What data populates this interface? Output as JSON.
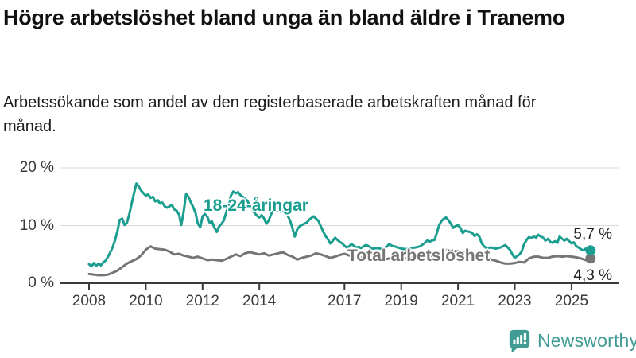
{
  "header": {
    "title": "Högre arbetslöshet bland unga än bland äldre i Tranemo",
    "subtitle": "Arbetssökande som andel av den registerbaserade arbetskraften månad för månad."
  },
  "chart_data": {
    "type": "line",
    "title": "Högre arbetslöshet bland unga än bland äldre i Tranemo",
    "subtitle": "Arbetssökande som andel av den registerbaserade arbetskraften månad för månad.",
    "grid": "horizontal",
    "legend": "inline-labels",
    "x_axis": {
      "range": [
        2008,
        2026.6
      ],
      "ticks": [
        {
          "value": 2008,
          "label": "2008"
        },
        {
          "value": 2010,
          "label": "2010"
        },
        {
          "value": 2012,
          "label": "2012"
        },
        {
          "value": 2014,
          "label": "2014"
        },
        {
          "value": 2017,
          "label": "2017"
        },
        {
          "value": 2019,
          "label": "2019"
        },
        {
          "value": 2021,
          "label": "2021"
        },
        {
          "value": 2023,
          "label": "2023"
        },
        {
          "value": 2025,
          "label": "2025"
        }
      ]
    },
    "y_axis": {
      "unit": "%",
      "range": [
        0,
        20
      ],
      "ticks": [
        {
          "value": 0,
          "label": "0 %"
        },
        {
          "value": 10,
          "label": "10 %"
        },
        {
          "value": 20,
          "label": "20 %"
        }
      ]
    },
    "series": [
      {
        "name": "18-24-åringar",
        "color": "#1b9e90",
        "end_label": "5,7 %",
        "end_value": 5.7,
        "x": [
          2008.0,
          2008.08,
          2008.17,
          2008.25,
          2008.33,
          2008.42,
          2008.5,
          2008.58,
          2008.67,
          2008.75,
          2008.83,
          2008.92,
          2009.0,
          2009.08,
          2009.17,
          2009.25,
          2009.33,
          2009.42,
          2009.5,
          2009.58,
          2009.67,
          2009.75,
          2009.83,
          2009.92,
          2010.0,
          2010.08,
          2010.17,
          2010.25,
          2010.33,
          2010.42,
          2010.5,
          2010.58,
          2010.67,
          2010.75,
          2010.83,
          2010.92,
          2011.0,
          2011.08,
          2011.17,
          2011.25,
          2011.33,
          2011.42,
          2011.5,
          2011.58,
          2011.67,
          2011.75,
          2011.83,
          2011.92,
          2012.0,
          2012.08,
          2012.17,
          2012.25,
          2012.33,
          2012.42,
          2012.5,
          2012.58,
          2012.67,
          2012.75,
          2012.83,
          2012.92,
          2013.0,
          2013.08,
          2013.17,
          2013.25,
          2013.33,
          2013.42,
          2013.5,
          2013.58,
          2013.67,
          2013.75,
          2013.83,
          2013.92,
          2014.0,
          2014.08,
          2014.17,
          2014.25,
          2014.33,
          2014.42,
          2014.5,
          2014.58,
          2014.67,
          2014.75,
          2014.83,
          2014.92,
          2015.0,
          2015.08,
          2015.17,
          2015.25,
          2015.33,
          2015.42,
          2015.5,
          2015.58,
          2015.67,
          2015.75,
          2015.83,
          2015.92,
          2016.0,
          2016.08,
          2016.17,
          2016.25,
          2016.33,
          2016.42,
          2016.5,
          2016.58,
          2016.67,
          2016.75,
          2016.83,
          2016.92,
          2017.0,
          2017.08,
          2017.17,
          2017.25,
          2017.33,
          2017.42,
          2017.5,
          2017.58,
          2017.67,
          2017.75,
          2017.83,
          2017.92,
          2018.0,
          2018.17,
          2018.33,
          2018.5,
          2018.58,
          2018.67,
          2018.83,
          2019.0,
          2019.17,
          2019.33,
          2019.5,
          2019.67,
          2019.83,
          2019.92,
          2020.0,
          2020.08,
          2020.17,
          2020.25,
          2020.33,
          2020.42,
          2020.5,
          2020.58,
          2020.67,
          2020.75,
          2020.83,
          2020.92,
          2021.0,
          2021.08,
          2021.17,
          2021.25,
          2021.33,
          2021.42,
          2021.5,
          2021.58,
          2021.67,
          2021.75,
          2021.83,
          2021.92,
          2022.0,
          2022.17,
          2022.33,
          2022.5,
          2022.58,
          2022.67,
          2022.75,
          2022.83,
          2022.92,
          2023.0,
          2023.08,
          2023.17,
          2023.25,
          2023.33,
          2023.42,
          2023.5,
          2023.58,
          2023.67,
          2023.75,
          2023.83,
          2023.92,
          2024.0,
          2024.08,
          2024.17,
          2024.25,
          2024.33,
          2024.42,
          2024.5,
          2024.58,
          2024.67,
          2024.75,
          2024.83,
          2024.92,
          2025.0,
          2025.08,
          2025.17,
          2025.25,
          2025.33,
          2025.42,
          2025.5,
          2025.58,
          2025.67
        ],
        "y": [
          3.3,
          2.9,
          3.5,
          3.0,
          3.4,
          3.1,
          3.6,
          3.9,
          4.6,
          5.4,
          6.2,
          7.5,
          9.0,
          11.0,
          11.2,
          10.1,
          10.4,
          12.0,
          13.8,
          15.5,
          17.3,
          16.8,
          16.1,
          15.6,
          15.2,
          15.4,
          14.8,
          15.0,
          14.2,
          14.4,
          13.8,
          14.0,
          13.3,
          13.1,
          13.3,
          13.6,
          12.8,
          12.6,
          11.9,
          10.1,
          12.3,
          15.5,
          15.0,
          14.1,
          13.2,
          12.2,
          10.4,
          9.7,
          11.6,
          12.0,
          11.5,
          10.5,
          10.7,
          9.6,
          8.9,
          9.8,
          10.3,
          10.9,
          12.2,
          13.6,
          15.2,
          15.9,
          15.6,
          15.8,
          15.3,
          15.0,
          14.6,
          14.3,
          13.4,
          12.8,
          12.2,
          11.7,
          11.4,
          11.8,
          11.2,
          10.3,
          10.9,
          12.0,
          12.7,
          12.5,
          12.8,
          12.4,
          12.6,
          12.1,
          11.7,
          10.9,
          9.5,
          8.1,
          9.3,
          9.9,
          10.1,
          10.3,
          10.5,
          11.0,
          11.3,
          11.6,
          11.2,
          10.8,
          9.8,
          9.0,
          8.2,
          7.6,
          6.9,
          7.3,
          7.9,
          7.5,
          7.2,
          6.9,
          6.5,
          6.2,
          6.4,
          6.8,
          6.5,
          6.2,
          6.3,
          6.1,
          6.4,
          6.6,
          6.5,
          6.2,
          6.0,
          6.1,
          5.9,
          6.4,
          6.8,
          6.5,
          6.3,
          6.0,
          5.9,
          6.1,
          6.2,
          6.4,
          7.0,
          7.4,
          7.2,
          7.4,
          7.5,
          8.6,
          10.0,
          10.8,
          11.2,
          11.4,
          10.9,
          10.3,
          9.6,
          9.9,
          10.1,
          9.6,
          8.7,
          9.1,
          9.0,
          8.9,
          8.7,
          8.2,
          8.5,
          8.1,
          7.0,
          6.4,
          6.1,
          6.2,
          6.0,
          6.2,
          6.4,
          6.6,
          6.2,
          5.8,
          5.0,
          4.4,
          4.7,
          5.0,
          5.6,
          6.8,
          7.5,
          8.0,
          7.8,
          8.1,
          7.9,
          8.4,
          8.1,
          7.9,
          7.4,
          7.7,
          7.2,
          7.0,
          7.3,
          7.0,
          8.1,
          7.7,
          7.4,
          7.7,
          7.3,
          6.9,
          7.1,
          6.4,
          6.2,
          5.9,
          5.7,
          6.0,
          5.8,
          5.7
        ]
      },
      {
        "name": "Total arbetslöshet",
        "color": "#757575",
        "end_label": "4,3 %",
        "end_value": 4.3,
        "x": [
          2008.0,
          2008.17,
          2008.33,
          2008.5,
          2008.67,
          2008.83,
          2009.0,
          2009.17,
          2009.33,
          2009.5,
          2009.67,
          2009.83,
          2010.0,
          2010.08,
          2010.17,
          2010.25,
          2010.33,
          2010.5,
          2010.67,
          2010.83,
          2011.0,
          2011.17,
          2011.33,
          2011.5,
          2011.67,
          2011.83,
          2012.0,
          2012.17,
          2012.33,
          2012.5,
          2012.67,
          2012.83,
          2013.0,
          2013.17,
          2013.33,
          2013.5,
          2013.67,
          2013.83,
          2014.0,
          2014.17,
          2014.33,
          2014.5,
          2014.67,
          2014.83,
          2015.0,
          2015.17,
          2015.33,
          2015.5,
          2015.67,
          2015.83,
          2016.0,
          2016.17,
          2016.33,
          2016.5,
          2016.67,
          2016.83,
          2017.0,
          2017.17,
          2017.33,
          2017.5,
          2017.67,
          2017.83,
          2018.0,
          2018.17,
          2018.33,
          2018.5,
          2018.67,
          2018.83,
          2019.0,
          2019.17,
          2019.33,
          2019.5,
          2019.67,
          2019.83,
          2020.0,
          2020.17,
          2020.33,
          2020.5,
          2020.67,
          2020.83,
          2021.0,
          2021.17,
          2021.33,
          2021.5,
          2021.67,
          2021.83,
          2022.0,
          2022.17,
          2022.33,
          2022.5,
          2022.67,
          2022.83,
          2023.0,
          2023.17,
          2023.33,
          2023.5,
          2023.67,
          2023.83,
          2024.0,
          2024.17,
          2024.33,
          2024.5,
          2024.67,
          2024.83,
          2025.0,
          2025.17,
          2025.33,
          2025.5,
          2025.58,
          2025.67
        ],
        "y": [
          1.6,
          1.5,
          1.4,
          1.4,
          1.5,
          1.8,
          2.2,
          2.8,
          3.4,
          3.8,
          4.2,
          4.8,
          5.8,
          6.1,
          6.4,
          6.2,
          6.0,
          5.9,
          5.8,
          5.5,
          5.0,
          5.1,
          4.8,
          4.6,
          4.4,
          4.6,
          4.3,
          4.0,
          4.1,
          4.0,
          3.9,
          4.2,
          4.6,
          5.0,
          4.7,
          5.2,
          5.4,
          5.2,
          5.0,
          5.2,
          4.8,
          5.0,
          5.2,
          5.4,
          4.9,
          4.6,
          4.1,
          4.4,
          4.6,
          4.8,
          5.2,
          5.0,
          4.7,
          4.4,
          4.6,
          4.9,
          5.1,
          4.8,
          4.6,
          4.5,
          4.4,
          4.5,
          4.3,
          4.2,
          4.3,
          4.2,
          4.4,
          4.3,
          4.4,
          4.3,
          4.4,
          4.5,
          4.4,
          4.6,
          4.7,
          4.9,
          5.4,
          5.7,
          5.8,
          5.6,
          5.5,
          5.4,
          5.2,
          5.0,
          4.8,
          4.6,
          4.4,
          4.1,
          3.9,
          3.6,
          3.4,
          3.4,
          3.5,
          3.7,
          3.6,
          4.3,
          4.6,
          4.6,
          4.4,
          4.4,
          4.6,
          4.7,
          4.6,
          4.7,
          4.6,
          4.5,
          4.3,
          4.0,
          4.1,
          4.3
        ]
      }
    ]
  },
  "footer": {
    "brand": "Newsworthy"
  }
}
